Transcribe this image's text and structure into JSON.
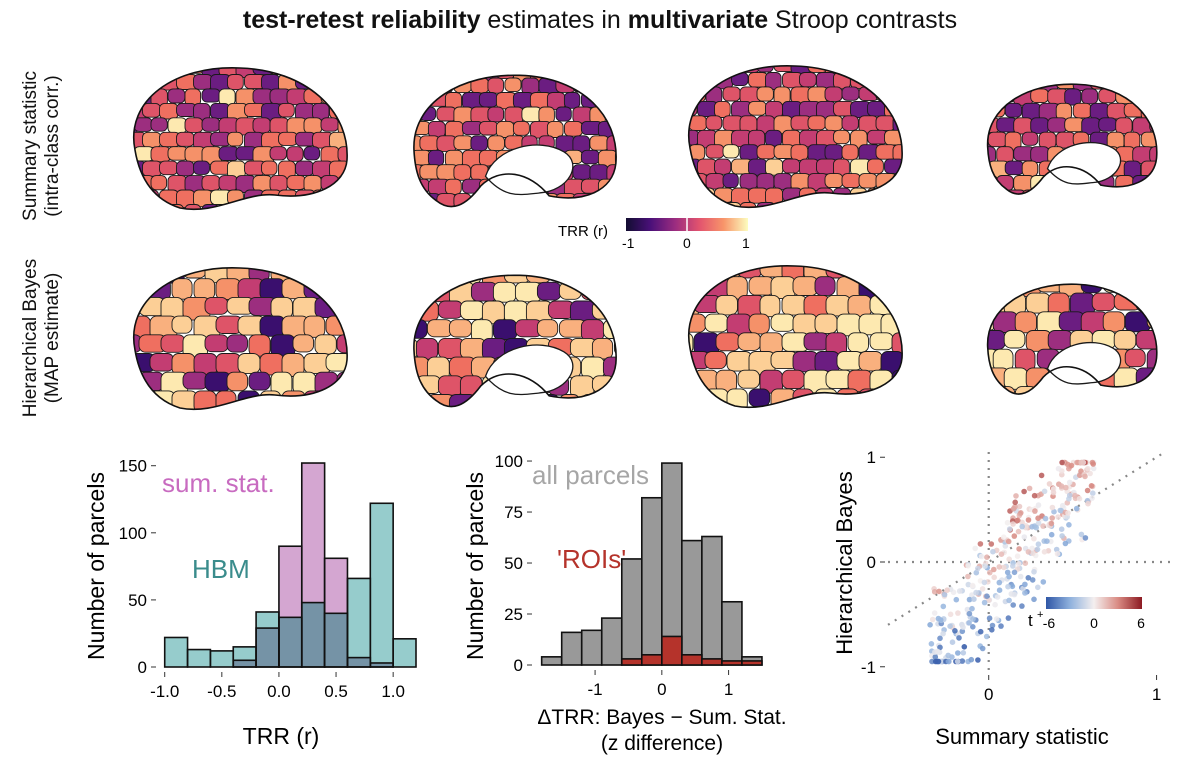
{
  "title": {
    "bold1": "test-retest reliability",
    "mid": " estimates in ",
    "bold2": "multivariate",
    "end": " Stroop contrasts"
  },
  "rows": [
    {
      "line1": "Summary statistic",
      "line2": "(intra-class corr.)"
    },
    {
      "line1": "Hierarchical Bayes",
      "line2": "(MAP estimate)"
    }
  ],
  "colorbar": {
    "label": "TRR (r)",
    "ticks": [
      "-1",
      "0",
      "1"
    ],
    "colors": [
      "#120d31",
      "#4a1079",
      "#9a2c80",
      "#e2536e",
      "#f8956a",
      "#fcfdbf"
    ]
  },
  "palette": [
    "#3a0f6e",
    "#6b1d81",
    "#9c2e7f",
    "#c33d72",
    "#de5468",
    "#ef6f60",
    "#f59169",
    "#f9b07e",
    "#fccf96",
    "#fde9b0"
  ],
  "chart_data": [
    {
      "type": "bar",
      "ylabel": "Number of parcels",
      "xlabel": "TRR (r)",
      "xticks": [
        -1.0,
        -0.5,
        0.0,
        0.5,
        1.0
      ],
      "xtick_labels": [
        "-1.0",
        "-0.5",
        "0.0",
        "0.5",
        "1.0"
      ],
      "yticks": [
        0,
        50,
        100,
        150
      ],
      "xlim": [
        -1.05,
        1.2
      ],
      "ylim": [
        0,
        155
      ],
      "bin_width": 0.2,
      "bin_starts": [
        -1.0,
        -0.8,
        -0.6,
        -0.4,
        -0.2,
        0.0,
        0.2,
        0.4,
        0.6,
        0.8,
        1.0
      ],
      "series": [
        {
          "name": "sum. stat.",
          "color": "#d4a6d1",
          "text_color": "#c86bc0",
          "values": [
            0,
            0,
            0,
            5,
            29,
            90,
            152,
            81,
            7,
            3,
            0
          ]
        },
        {
          "name": "HBM",
          "color": "#96cccc",
          "text_color": "#3a8c8c",
          "values": [
            22,
            13,
            12,
            15,
            41,
            37,
            48,
            40,
            66,
            122,
            21
          ]
        }
      ],
      "overlap_color": "#7593a6"
    },
    {
      "type": "bar",
      "ylabel": "Number of parcels",
      "xlabel_line1": "ΔTRR: Bayes − Sum. Stat.",
      "xlabel_line2": "(z difference)",
      "xticks": [
        -1,
        0,
        1
      ],
      "xtick_labels": [
        "-1",
        "0",
        "1"
      ],
      "yticks": [
        0,
        25,
        50,
        75,
        100
      ],
      "xlim": [
        -1.9,
        1.95
      ],
      "ylim": [
        0,
        101
      ],
      "bin_width": 0.3,
      "bin_starts": [
        -1.8,
        -1.5,
        -1.2,
        -0.9,
        -0.6,
        -0.3,
        0.0,
        0.3,
        0.6,
        0.9,
        1.2,
        1.5
      ],
      "series": [
        {
          "name": "all parcels",
          "color": "#999999",
          "text_color": "#a6a6a6",
          "values": [
            4,
            16,
            17,
            23,
            52,
            82,
            99,
            61,
            63,
            31,
            4,
            0
          ]
        },
        {
          "name": "'ROIs'",
          "color": "#b5332b",
          "text_color": "#b5332b",
          "values": [
            0,
            0,
            0,
            0,
            3,
            5,
            14,
            5,
            3,
            2,
            2,
            0
          ]
        }
      ]
    },
    {
      "type": "scatter",
      "xlabel": "Summary statistic",
      "ylabel": "Hierarchical Bayes",
      "xticks": [
        0,
        1
      ],
      "yticks": [
        -1,
        0,
        1
      ],
      "xlim": [
        -0.6,
        1.08
      ],
      "ylim": [
        -1.05,
        1.05
      ],
      "legend": {
        "title": "t",
        "title_sup": "+",
        "ticks": [
          "-6",
          "0",
          "6"
        ],
        "colors": [
          "#2f56a6",
          "#8fb1dd",
          "#f4efef",
          "#d98b83",
          "#8c1a22"
        ],
        "placement": "inside-right"
      },
      "points_n": 360
    }
  ]
}
